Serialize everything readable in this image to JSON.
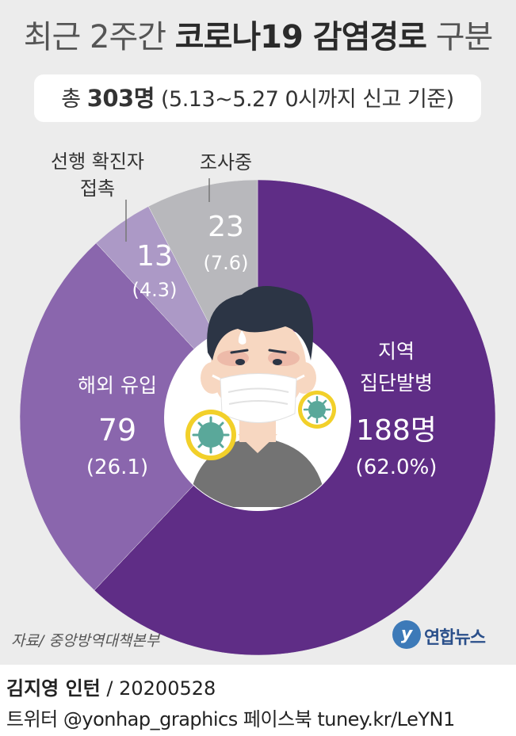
{
  "header": {
    "title_light_1": "최근 2주간 ",
    "title_bold": "코로나19 감염경로",
    "title_light_2": " 구분",
    "total_prefix": "총 ",
    "total_value": "303명",
    "period": " (5.13~5.27 0시까지 신고 기준)"
  },
  "chart_data": {
    "type": "pie",
    "donut": true,
    "unit": "명",
    "total": 303,
    "slices": [
      {
        "label": "지역 집단발병",
        "label_lines": [
          "지역",
          "집단발병"
        ],
        "value": 188,
        "value_text": "188명",
        "percent": 62.0,
        "percent_text": "(62.0%)",
        "color": "#5f2d86"
      },
      {
        "label": "해외 유입",
        "label_lines": [
          "해외 유입"
        ],
        "value": 79,
        "value_text": "79",
        "percent": 26.1,
        "percent_text": "(26.1)",
        "color": "#8a66ad"
      },
      {
        "label": "선행 확진자 접촉",
        "label_lines": [
          "선행 확진자",
          "접촉"
        ],
        "value": 13,
        "value_text": "13",
        "percent": 4.3,
        "percent_text": "(4.3)",
        "color": "#ac99c6"
      },
      {
        "label": "조사중",
        "label_lines": [
          "조사중"
        ],
        "value": 23,
        "value_text": "23",
        "percent": 7.6,
        "percent_text": "(7.6)",
        "color": "#b8b8bc"
      }
    ]
  },
  "footer": {
    "source": "자료/ 중앙방역대책본부",
    "logo_mark": "y",
    "logo_text": "연합뉴스",
    "author_name": "김지영 인턴",
    "date": " / 20200528",
    "social": "트위터 @yonhap_graphics  페이스북 tuney.kr/LeYN1"
  },
  "illustration": {
    "icon": "masked-person-with-virus-icon",
    "colors": {
      "skin": "#f7d7c1",
      "hair": "#2c3545",
      "mask": "#ffffff",
      "virus": "#5aa89a",
      "virus_ring": "#f2d02a",
      "shirt": "#737373"
    }
  }
}
